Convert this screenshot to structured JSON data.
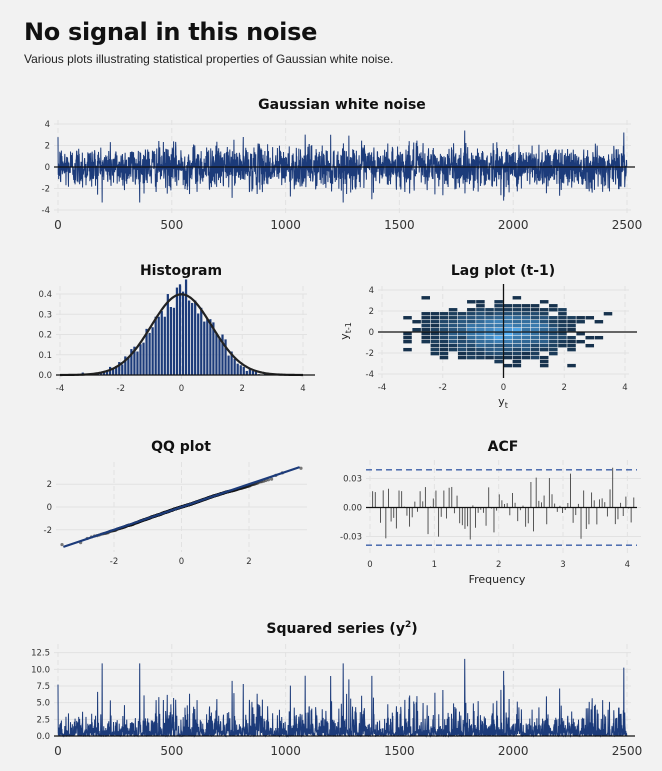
{
  "header": {
    "title": "No signal in this noise",
    "subtitle": "Various plots illustrating statistical properties of Gaussian white noise."
  },
  "colors": {
    "background": "#f2f2f2",
    "series": "#1c3b7a",
    "grid": "#e2e2e2",
    "zero_line": "#111111",
    "density": "#222222",
    "acf_bounds": "#3a5da8"
  },
  "chart_data": [
    {
      "type": "line",
      "title": "Gaussian white noise",
      "xlabel": "",
      "ylabel": "",
      "xlim": [
        0,
        2500
      ],
      "ylim": [
        -4,
        4
      ],
      "x_ticks": [
        "0",
        "500",
        "1000",
        "1500",
        "2000",
        "2500"
      ],
      "y_ticks": [
        "-4",
        "-2",
        "0",
        "2",
        "4"
      ],
      "n_points": 2500,
      "notes": "standard normal white noise, values mostly within -3 to 3.5"
    },
    {
      "type": "bar",
      "title": "Histogram",
      "xlabel": "",
      "ylabel": "",
      "xlim": [
        -4,
        4
      ],
      "ylim": [
        0,
        0.42
      ],
      "x_ticks": [
        "-4",
        "-2",
        "0",
        "2",
        "4"
      ],
      "y_ticks": [
        "0.0",
        "0.1",
        "0.2",
        "0.3",
        "0.4"
      ],
      "overlay": "normal density curve, peak ~0.40 at 0"
    },
    {
      "type": "heatmap",
      "title": "Lag plot (t-1)",
      "xlabel": "y",
      "xlabel_sub": "t",
      "ylabel": "y",
      "ylabel_sub": "t-1",
      "xlim": [
        -4,
        4
      ],
      "ylim": [
        -4,
        4
      ],
      "x_ticks": [
        "-4",
        "-2",
        "0",
        "2",
        "4"
      ],
      "y_ticks": [
        "-4",
        "-2",
        "0",
        "2",
        "4"
      ]
    },
    {
      "type": "scatter",
      "title": "QQ plot",
      "xlabel": "",
      "ylabel": "",
      "xlim": [
        -3.6,
        3.6
      ],
      "ylim": [
        -3.6,
        3.6
      ],
      "x_ticks": [
        "-2",
        "0",
        "2"
      ],
      "y_ticks": [
        "-2",
        "0",
        "2"
      ],
      "notes": "sample quantiles lie on the reference line y = x"
    },
    {
      "type": "bar",
      "title": "ACF",
      "xlabel": "Frequency",
      "ylabel": "",
      "xlim": [
        0,
        4.15
      ],
      "ylim": [
        -0.045,
        0.045
      ],
      "x_ticks": [
        "0",
        "1",
        "2",
        "3",
        "4"
      ],
      "y_ticks": [
        "-0.03",
        "0.00",
        "0.03"
      ],
      "confidence_bounds": [
        -0.039,
        0.039
      ],
      "n_lags": 100
    },
    {
      "type": "line",
      "title": "Squared series (y",
      "title_sup": "2",
      "title_end": ")",
      "xlabel": "",
      "ylabel": "",
      "xlim": [
        0,
        2500
      ],
      "ylim": [
        0,
        13.2
      ],
      "x_ticks": [
        "0",
        "500",
        "1000",
        "1500",
        "2000",
        "2500"
      ],
      "y_ticks": [
        "0.0",
        "2.5",
        "5.0",
        "7.5",
        "10.0",
        "12.5"
      ]
    }
  ]
}
